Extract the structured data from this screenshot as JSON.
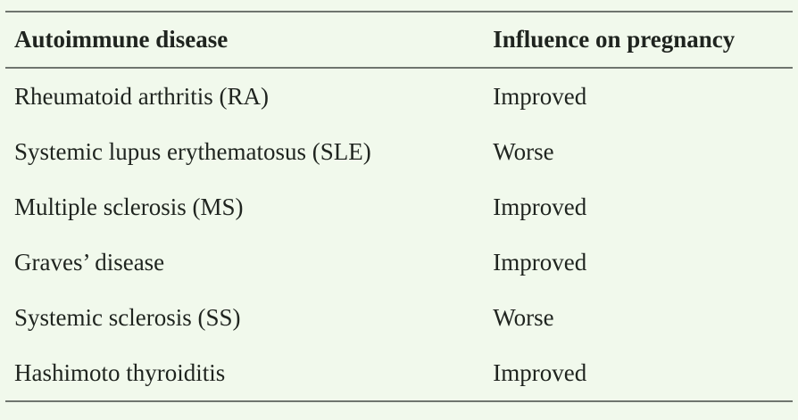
{
  "colors": {
    "background": "#f1f9ec",
    "border": "#6f756f",
    "text": "#1f241f"
  },
  "table": {
    "headers": [
      "Autoimmune disease",
      "Influence on pregnancy"
    ],
    "rows": [
      [
        "Rheumatoid arthritis (RA)",
        "Improved"
      ],
      [
        "Systemic lupus erythematosus (SLE)",
        "Worse"
      ],
      [
        "Multiple sclerosis (MS)",
        "Improved"
      ],
      [
        "Graves’ disease",
        "Improved"
      ],
      [
        "Systemic sclerosis (SS)",
        "Worse"
      ],
      [
        "Hashimoto thyroiditis",
        "Improved"
      ]
    ]
  },
  "chart_data": {
    "type": "table",
    "columns": [
      "Autoimmune disease",
      "Influence on pregnancy"
    ],
    "rows": [
      [
        "Rheumatoid arthritis (RA)",
        "Improved"
      ],
      [
        "Systemic lupus erythematosus (SLE)",
        "Worse"
      ],
      [
        "Multiple sclerosis (MS)",
        "Improved"
      ],
      [
        "Graves’ disease",
        "Improved"
      ],
      [
        "Systemic sclerosis (SS)",
        "Worse"
      ],
      [
        "Hashimoto thyroiditis",
        "Improved"
      ]
    ]
  }
}
